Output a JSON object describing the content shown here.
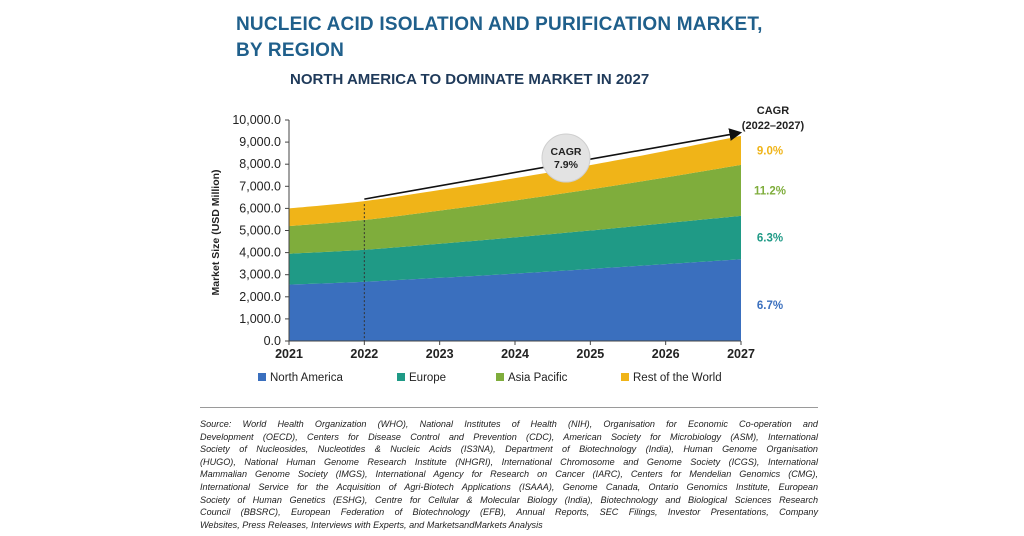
{
  "header": {
    "title_line1": "NUCLEIC ACID ISOLATION AND PURIFICATION MARKET,",
    "title_line2": "BY REGION",
    "subtitle": "NORTH AMERICA TO DOMINATE MARKET IN 2027"
  },
  "colors": {
    "north_america": "#3a6fbe",
    "europe": "#1f9a86",
    "asia_pacific": "#7fad3c",
    "rest_of_world": "#f0b418",
    "title": "#1f5f8b",
    "cagr_na": "#3a6fbe",
    "cagr_eu": "#1f9a86",
    "cagr_ap": "#7fad3c",
    "cagr_row": "#f0b418"
  },
  "chart_data": {
    "type": "area",
    "stacked": true,
    "ylabel": "Market Size (USD Million)",
    "xlabel": "",
    "ylim": [
      0,
      10000
    ],
    "yticks": [
      "0.0",
      "1,000.0",
      "2,000.0",
      "3,000.0",
      "4,000.0",
      "5,000.0",
      "6,000.0",
      "7,000.0",
      "8,000.0",
      "9,000.0",
      "10,000.0"
    ],
    "x": [
      "2021",
      "2022",
      "2023",
      "2024",
      "2025",
      "2026",
      "2027"
    ],
    "series": [
      {
        "name": "North America",
        "values": [
          2550,
          2680,
          2860,
          3050,
          3260,
          3480,
          3700
        ]
      },
      {
        "name": "Europe",
        "values": [
          1400,
          1450,
          1540,
          1640,
          1740,
          1850,
          1960
        ]
      },
      {
        "name": "Asia Pacific",
        "values": [
          1250,
          1350,
          1500,
          1670,
          1860,
          2070,
          2310
        ]
      },
      {
        "name": "Rest of the World",
        "values": [
          800,
          850,
          930,
          1010,
          1100,
          1200,
          1310
        ]
      }
    ],
    "cagr_header_line1": "CAGR",
    "cagr_header_line2": "(2022–2027)",
    "cagr_values": [
      "6.7%",
      "6.3%",
      "11.2%",
      "9.0%"
    ],
    "overall_cagr_label": "CAGR",
    "overall_cagr_value": "7.9%",
    "legend_position": "bottom"
  },
  "source": {
    "lines": [
      "Source: World Health Organization (WHO), National Institutes of Health (NIH), Organisation for Economic Co-operation and",
      "Development (OECD), Centers for Disease Control and Prevention (CDC), American Society for Microbiology (ASM), International",
      "Society of Nucleosides, Nucleotides & Nucleic Acids (IS3NA), Department of Biotechnology (India), Human Genome Organisation",
      "(HUGO), National Human Genome Research Institute (NHGRI), International Chromosome and Genome Society (ICGS), International",
      "Mammalian Genome Society (IMGS), International Agency for Research on Cancer (IARC), Centers for Mendelian Genomics (CMG),",
      "International Service for the Acquisition of Agri-Biotech Applications (ISAAA), Genome Canada, Ontario Genomics Institute, European",
      "Society of Human Genetics (ESHG), Centre for Cellular & Molecular Biology (India), Biotechnology and Biological Sciences Research",
      "Council (BBSRC), European Federation of Biotechnology (EFB), Annual Reports, SEC Filings, Investor Presentations, Company",
      "Websites, Press Releases, Interviews with Experts, and MarketsandMarkets Analysis"
    ]
  }
}
